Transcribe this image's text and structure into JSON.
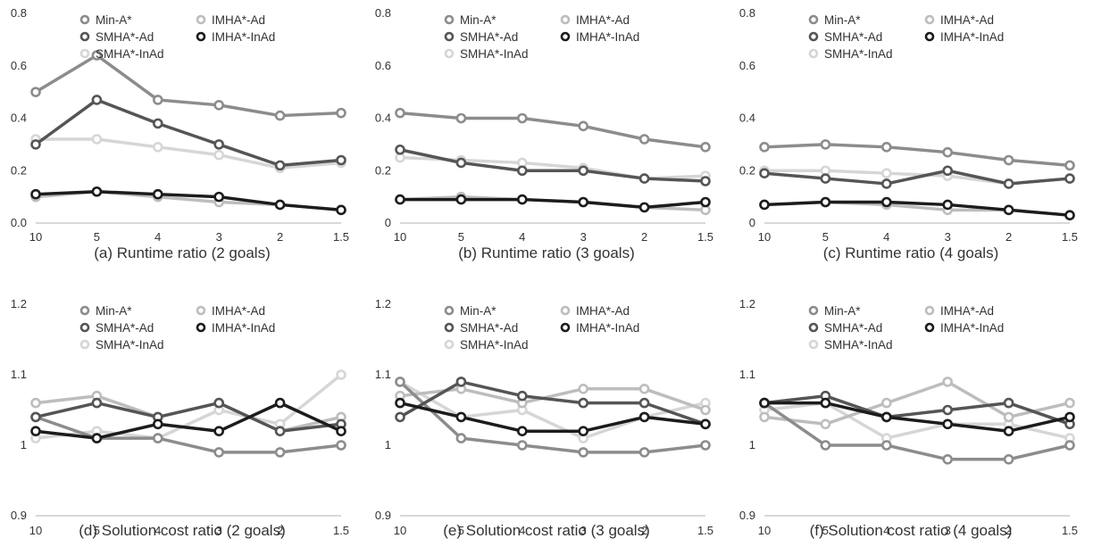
{
  "colors": {
    "Min-A*": "#8c8c8c",
    "IMHA*-Ad": "#bdbdbd",
    "SMHA*-Ad": "#555555",
    "IMHA*-InAd": "#1c1c1c",
    "SMHA*-InAd": "#d6d6d6",
    "axis": "#b0b0b0"
  },
  "chart_data": [
    {
      "type": "line",
      "caption": "(a)  Runtime ratio (2 goals)",
      "categories": [
        "10",
        "5",
        "4",
        "3",
        "2",
        "1.5"
      ],
      "ylim": [
        0,
        0.8
      ],
      "yticks": [
        "0.0",
        "0.2",
        "0.4",
        "0.6",
        "0.8"
      ],
      "legend": "top-right",
      "grid": false,
      "series": [
        {
          "name": "Min-A*",
          "values": [
            0.5,
            0.64,
            0.47,
            0.45,
            0.41,
            0.42
          ]
        },
        {
          "name": "IMHA*-Ad",
          "values": [
            0.1,
            0.12,
            0.1,
            0.08,
            0.07,
            0.05
          ]
        },
        {
          "name": "SMHA*-Ad",
          "values": [
            0.3,
            0.47,
            0.38,
            0.3,
            0.22,
            0.24
          ]
        },
        {
          "name": "IMHA*-InAd",
          "values": [
            0.11,
            0.12,
            0.11,
            0.1,
            0.07,
            0.05
          ]
        },
        {
          "name": "SMHA*-InAd",
          "values": [
            0.32,
            0.32,
            0.29,
            0.26,
            0.21,
            0.23
          ]
        }
      ]
    },
    {
      "type": "line",
      "caption": "(b)  Runtime ratio (3 goals)",
      "categories": [
        "10",
        "5",
        "4",
        "3",
        "2",
        "1.5"
      ],
      "ylim": [
        0,
        0.8
      ],
      "yticks": [
        "0",
        "0.2",
        "0.4",
        "0.6",
        "0.8"
      ],
      "legend": "top-right",
      "grid": false,
      "series": [
        {
          "name": "Min-A*",
          "values": [
            0.42,
            0.4,
            0.4,
            0.37,
            0.32,
            0.29
          ]
        },
        {
          "name": "IMHA*-Ad",
          "values": [
            0.09,
            0.1,
            0.09,
            0.08,
            0.06,
            0.05
          ]
        },
        {
          "name": "SMHA*-Ad",
          "values": [
            0.28,
            0.23,
            0.2,
            0.2,
            0.17,
            0.16
          ]
        },
        {
          "name": "IMHA*-InAd",
          "values": [
            0.09,
            0.09,
            0.09,
            0.08,
            0.06,
            0.08
          ]
        },
        {
          "name": "SMHA*-InAd",
          "values": [
            0.25,
            0.24,
            0.23,
            0.21,
            0.17,
            0.18
          ]
        }
      ]
    },
    {
      "type": "line",
      "caption": "(c)  Runtime ratio (4 goals)",
      "categories": [
        "10",
        "5",
        "4",
        "3",
        "2",
        "1.5"
      ],
      "ylim": [
        0,
        0.8
      ],
      "yticks": [
        "0",
        "0.2",
        "0.4",
        "0.6",
        "0.8"
      ],
      "legend": "top-right",
      "grid": false,
      "series": [
        {
          "name": "Min-A*",
          "values": [
            0.29,
            0.3,
            0.29,
            0.27,
            0.24,
            0.22
          ]
        },
        {
          "name": "IMHA*-Ad",
          "values": [
            0.07,
            0.08,
            0.07,
            0.05,
            0.05,
            0.03
          ]
        },
        {
          "name": "SMHA*-Ad",
          "values": [
            0.19,
            0.17,
            0.15,
            0.2,
            0.15,
            0.17
          ]
        },
        {
          "name": "IMHA*-InAd",
          "values": [
            0.07,
            0.08,
            0.08,
            0.07,
            0.05,
            0.03
          ]
        },
        {
          "name": "SMHA*-InAd",
          "values": [
            0.2,
            0.2,
            0.19,
            0.18,
            0.15,
            0.17
          ]
        }
      ]
    },
    {
      "type": "line",
      "caption": "(d)  Solution cost ratio (2 goals)",
      "categories": [
        "10",
        "5",
        "4",
        "3",
        "2",
        "1.5"
      ],
      "ylim": [
        0.9,
        1.2
      ],
      "yticks": [
        "0.9",
        "1",
        "1.1",
        "1.2"
      ],
      "legend": "top-right",
      "grid": false,
      "series": [
        {
          "name": "Min-A*",
          "values": [
            1.04,
            1.01,
            1.01,
            0.99,
            0.99,
            1.0
          ]
        },
        {
          "name": "IMHA*-Ad",
          "values": [
            1.06,
            1.07,
            1.04,
            1.06,
            1.02,
            1.04
          ]
        },
        {
          "name": "SMHA*-Ad",
          "values": [
            1.04,
            1.06,
            1.04,
            1.06,
            1.02,
            1.03
          ]
        },
        {
          "name": "IMHA*-InAd",
          "values": [
            1.02,
            1.01,
            1.03,
            1.02,
            1.06,
            1.02
          ]
        },
        {
          "name": "SMHA*-InAd",
          "values": [
            1.01,
            1.02,
            1.01,
            1.05,
            1.03,
            1.1
          ]
        }
      ]
    },
    {
      "type": "line",
      "caption": "(e)  Solution cost ratio (3 goals)",
      "categories": [
        "10",
        "5",
        "4",
        "3",
        "2",
        "1.5"
      ],
      "ylim": [
        0.9,
        1.2
      ],
      "yticks": [
        "0.9",
        "1",
        "1.1",
        "1.2"
      ],
      "legend": "top-right",
      "grid": false,
      "series": [
        {
          "name": "Min-A*",
          "values": [
            1.09,
            1.01,
            1.0,
            0.99,
            0.99,
            1.0
          ]
        },
        {
          "name": "IMHA*-Ad",
          "values": [
            1.07,
            1.08,
            1.06,
            1.08,
            1.08,
            1.05
          ]
        },
        {
          "name": "SMHA*-Ad",
          "values": [
            1.04,
            1.09,
            1.07,
            1.06,
            1.06,
            1.03
          ]
        },
        {
          "name": "IMHA*-InAd",
          "values": [
            1.06,
            1.04,
            1.02,
            1.02,
            1.04,
            1.03
          ]
        },
        {
          "name": "SMHA*-InAd",
          "values": [
            1.09,
            1.04,
            1.05,
            1.01,
            1.04,
            1.06
          ]
        }
      ]
    },
    {
      "type": "line",
      "caption": "(f)  Solution cost ratio (4 goals)",
      "categories": [
        "10",
        "5",
        "4",
        "3",
        "2",
        "1.5"
      ],
      "ylim": [
        0.9,
        1.2
      ],
      "yticks": [
        "0.9",
        "1",
        "1.1",
        "1.2"
      ],
      "legend": "top-right",
      "grid": false,
      "series": [
        {
          "name": "Min-A*",
          "values": [
            1.06,
            1.0,
            1.0,
            0.98,
            0.98,
            1.0
          ]
        },
        {
          "name": "IMHA*-Ad",
          "values": [
            1.04,
            1.03,
            1.06,
            1.09,
            1.04,
            1.06
          ]
        },
        {
          "name": "SMHA*-Ad",
          "values": [
            1.06,
            1.07,
            1.04,
            1.05,
            1.06,
            1.03
          ]
        },
        {
          "name": "IMHA*-InAd",
          "values": [
            1.06,
            1.06,
            1.04,
            1.03,
            1.02,
            1.04
          ]
        },
        {
          "name": "SMHA*-InAd",
          "values": [
            1.05,
            1.06,
            1.01,
            1.03,
            1.03,
            1.01
          ]
        }
      ]
    }
  ]
}
